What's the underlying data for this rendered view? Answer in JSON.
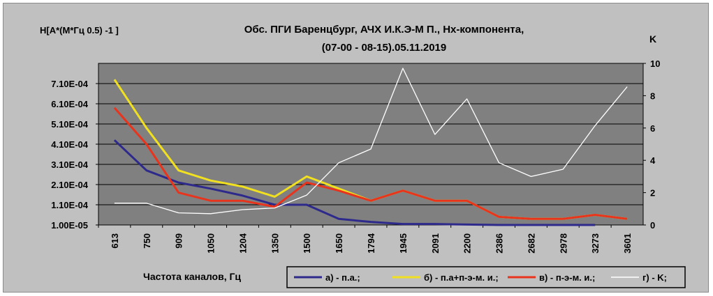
{
  "chart_data": {
    "type": "line",
    "title_line1": "Обс. ПГИ Баренцбург, АЧХ И.К.Э-М П.,   Hx-компонента,",
    "title_line2": "(07-00 - 08-15).05.11.2019",
    "ylabel_left": "H[А*(М*Гц 0.5) -1 ]",
    "ylabel_right": "K",
    "xlabel": "Частота каналов, Гц",
    "categories": [
      "613",
      "750",
      "909",
      "1050",
      "1204",
      "1350",
      "1500",
      "1650",
      "1794",
      "1945",
      "2091",
      "2200",
      "2386",
      "2682",
      "2978",
      "3273",
      "3601"
    ],
    "y_left_ticks": [
      "1.00E-05",
      "1.10E-04",
      "2.10E-04",
      "3.10E-04",
      "4.10E-04",
      "5.10E-04",
      "6.10E-04",
      "7.10E-04"
    ],
    "y_left_tick_values": [
      1e-05,
      0.00011,
      0.00021,
      0.00031,
      0.00041,
      0.00051,
      0.00061,
      0.00071
    ],
    "y_left_range": [
      1e-05,
      0.00081
    ],
    "y_right_ticks": [
      "0",
      "2",
      "4",
      "6",
      "8",
      "10"
    ],
    "y_right_range": [
      0,
      10
    ],
    "grid": true,
    "legend_position": "bottom-right",
    "series": [
      {
        "name": "а) -  п.а.;",
        "axis": "left",
        "color": "#2e2a8c",
        "values": [
          0.00043,
          0.00028,
          0.00022,
          0.00019,
          0.000155,
          0.00011,
          0.00011,
          4e-05,
          2.5e-05,
          1.5e-05,
          1.5e-05,
          1.2e-05,
          1e-05,
          1e-05,
          1e-05,
          1e-05,
          null
        ]
      },
      {
        "name": "б) - п.а+п-э-м. и.;",
        "axis": "left",
        "color": "#f0e020",
        "values": [
          0.00073,
          0.00049,
          0.00028,
          0.00023,
          0.0002,
          0.00015,
          0.00025,
          0.00019,
          0.00013,
          0.00018,
          0.00013,
          0.00013,
          5e-05,
          4e-05,
          4e-05,
          6e-05,
          4e-05
        ]
      },
      {
        "name": "в)  -  п-э-м. и.;",
        "axis": "left",
        "color": "#e8341c",
        "values": [
          0.00059,
          0.00041,
          0.00017,
          0.00013,
          0.00013,
          0.0001,
          0.00022,
          0.00018,
          0.00013,
          0.00018,
          0.00013,
          0.00013,
          5e-05,
          4e-05,
          4e-05,
          6e-05,
          4e-05
        ]
      },
      {
        "name": "г) - K;",
        "axis": "right",
        "color": "#ffffff",
        "values": [
          1.35,
          1.35,
          0.75,
          0.7,
          0.95,
          1.05,
          1.85,
          3.85,
          4.7,
          9.7,
          5.6,
          7.8,
          3.85,
          3.0,
          3.45,
          6.15,
          8.55
        ]
      }
    ]
  }
}
